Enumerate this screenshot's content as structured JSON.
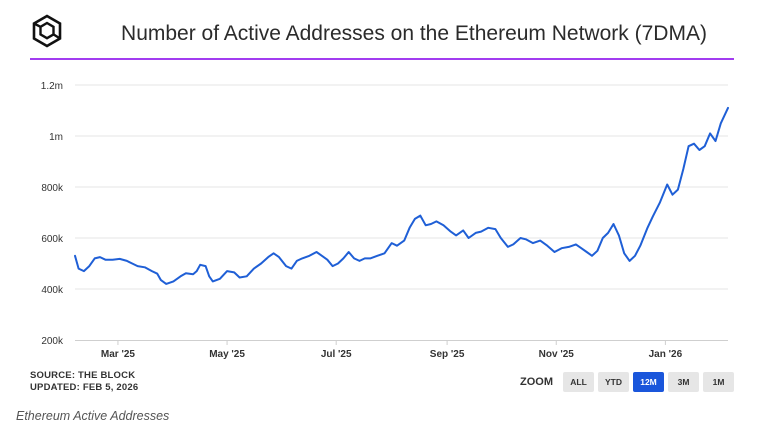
{
  "header": {
    "title": "Number of Active Addresses on the Ethereum Network (7DMA)"
  },
  "footer": {
    "source_line": "SOURCE: THE BLOCK",
    "updated_line": "UPDATED: FEB 5, 2026"
  },
  "zoom": {
    "label": "ZOOM",
    "buttons": [
      {
        "label": "ALL",
        "active": false
      },
      {
        "label": "YTD",
        "active": false
      },
      {
        "label": "12M",
        "active": true
      },
      {
        "label": "3M",
        "active": false
      },
      {
        "label": "1M",
        "active": false
      }
    ]
  },
  "caption": "Ethereum Active Addresses",
  "colors": {
    "line": "#1f5fd6",
    "title_rule": "#a23cf0",
    "active_zoom": "#1a56db",
    "gridline": "#e4e4e4"
  },
  "chart_data": {
    "type": "line",
    "title": "Number of Active Addresses on the Ethereum Network (7DMA)",
    "xlabel": "",
    "ylabel": "",
    "x_range": [
      "2025-02-05",
      "2026-02-05"
    ],
    "ylim": [
      200000,
      1200000
    ],
    "yticks": [
      {
        "value": 200000,
        "label": "200k"
      },
      {
        "value": 400000,
        "label": "400k"
      },
      {
        "value": 600000,
        "label": "600k"
      },
      {
        "value": 800000,
        "label": "800k"
      },
      {
        "value": 1000000,
        "label": "1m"
      },
      {
        "value": 1200000,
        "label": "1.2m"
      }
    ],
    "xticks": [
      {
        "date": "2025-03-01",
        "label": "Mar '25"
      },
      {
        "date": "2025-05-01",
        "label": "May '25"
      },
      {
        "date": "2025-07-01",
        "label": "Jul '25"
      },
      {
        "date": "2025-09-01",
        "label": "Sep '25"
      },
      {
        "date": "2025-11-01",
        "label": "Nov '25"
      },
      {
        "date": "2026-01-01",
        "label": "Jan '26"
      }
    ],
    "grid": true,
    "legend": "none",
    "series": [
      {
        "name": "Active Addresses (7DMA)",
        "points": [
          [
            "2025-02-05",
            530000
          ],
          [
            "2025-02-07",
            480000
          ],
          [
            "2025-02-10",
            470000
          ],
          [
            "2025-02-13",
            490000
          ],
          [
            "2025-02-16",
            520000
          ],
          [
            "2025-02-19",
            525000
          ],
          [
            "2025-02-22",
            515000
          ],
          [
            "2025-02-26",
            515000
          ],
          [
            "2025-03-02",
            518000
          ],
          [
            "2025-03-06",
            510000
          ],
          [
            "2025-03-09",
            500000
          ],
          [
            "2025-03-12",
            490000
          ],
          [
            "2025-03-16",
            485000
          ],
          [
            "2025-03-20",
            470000
          ],
          [
            "2025-03-23",
            460000
          ],
          [
            "2025-03-25",
            435000
          ],
          [
            "2025-03-28",
            420000
          ],
          [
            "2025-04-01",
            430000
          ],
          [
            "2025-04-05",
            450000
          ],
          [
            "2025-04-08",
            462000
          ],
          [
            "2025-04-12",
            458000
          ],
          [
            "2025-04-14",
            470000
          ],
          [
            "2025-04-16",
            495000
          ],
          [
            "2025-04-19",
            490000
          ],
          [
            "2025-04-21",
            450000
          ],
          [
            "2025-04-23",
            430000
          ],
          [
            "2025-04-27",
            440000
          ],
          [
            "2025-05-01",
            470000
          ],
          [
            "2025-05-05",
            465000
          ],
          [
            "2025-05-08",
            445000
          ],
          [
            "2025-05-12",
            450000
          ],
          [
            "2025-05-16",
            480000
          ],
          [
            "2025-05-20",
            500000
          ],
          [
            "2025-05-24",
            525000
          ],
          [
            "2025-05-27",
            540000
          ],
          [
            "2025-05-30",
            525000
          ],
          [
            "2025-06-03",
            490000
          ],
          [
            "2025-06-06",
            480000
          ],
          [
            "2025-06-09",
            510000
          ],
          [
            "2025-06-12",
            520000
          ],
          [
            "2025-06-16",
            530000
          ],
          [
            "2025-06-20",
            545000
          ],
          [
            "2025-06-23",
            530000
          ],
          [
            "2025-06-26",
            515000
          ],
          [
            "2025-06-29",
            490000
          ],
          [
            "2025-07-02",
            500000
          ],
          [
            "2025-07-05",
            520000
          ],
          [
            "2025-07-08",
            545000
          ],
          [
            "2025-07-11",
            520000
          ],
          [
            "2025-07-14",
            510000
          ],
          [
            "2025-07-17",
            520000
          ],
          [
            "2025-07-20",
            520000
          ],
          [
            "2025-07-24",
            530000
          ],
          [
            "2025-07-28",
            540000
          ],
          [
            "2025-08-01",
            580000
          ],
          [
            "2025-08-04",
            570000
          ],
          [
            "2025-08-08",
            590000
          ],
          [
            "2025-08-11",
            640000
          ],
          [
            "2025-08-14",
            675000
          ],
          [
            "2025-08-17",
            688000
          ],
          [
            "2025-08-20",
            650000
          ],
          [
            "2025-08-23",
            655000
          ],
          [
            "2025-08-26",
            665000
          ],
          [
            "2025-08-30",
            650000
          ],
          [
            "2025-09-03",
            625000
          ],
          [
            "2025-09-06",
            610000
          ],
          [
            "2025-09-10",
            630000
          ],
          [
            "2025-09-13",
            600000
          ],
          [
            "2025-09-17",
            620000
          ],
          [
            "2025-09-20",
            625000
          ],
          [
            "2025-09-24",
            640000
          ],
          [
            "2025-09-28",
            635000
          ],
          [
            "2025-10-01",
            600000
          ],
          [
            "2025-10-05",
            565000
          ],
          [
            "2025-10-08",
            575000
          ],
          [
            "2025-10-12",
            600000
          ],
          [
            "2025-10-15",
            595000
          ],
          [
            "2025-10-19",
            580000
          ],
          [
            "2025-10-23",
            590000
          ],
          [
            "2025-10-27",
            570000
          ],
          [
            "2025-10-31",
            545000
          ],
          [
            "2025-11-04",
            560000
          ],
          [
            "2025-11-08",
            565000
          ],
          [
            "2025-11-12",
            575000
          ],
          [
            "2025-11-15",
            560000
          ],
          [
            "2025-11-18",
            545000
          ],
          [
            "2025-11-21",
            530000
          ],
          [
            "2025-11-24",
            550000
          ],
          [
            "2025-11-27",
            600000
          ],
          [
            "2025-11-30",
            620000
          ],
          [
            "2025-12-03",
            655000
          ],
          [
            "2025-12-06",
            610000
          ],
          [
            "2025-12-09",
            540000
          ],
          [
            "2025-12-12",
            510000
          ],
          [
            "2025-12-15",
            530000
          ],
          [
            "2025-12-18",
            570000
          ],
          [
            "2025-12-22",
            640000
          ],
          [
            "2025-12-25",
            685000
          ],
          [
            "2025-12-29",
            740000
          ],
          [
            "2026-01-02",
            810000
          ],
          [
            "2026-01-05",
            770000
          ],
          [
            "2026-01-08",
            790000
          ],
          [
            "2026-01-11",
            870000
          ],
          [
            "2026-01-14",
            960000
          ],
          [
            "2026-01-17",
            970000
          ],
          [
            "2026-01-20",
            945000
          ],
          [
            "2026-01-23",
            960000
          ],
          [
            "2026-01-26",
            1010000
          ],
          [
            "2026-01-29",
            980000
          ],
          [
            "2026-02-01",
            1050000
          ],
          [
            "2026-02-05",
            1110000
          ]
        ]
      }
    ]
  }
}
